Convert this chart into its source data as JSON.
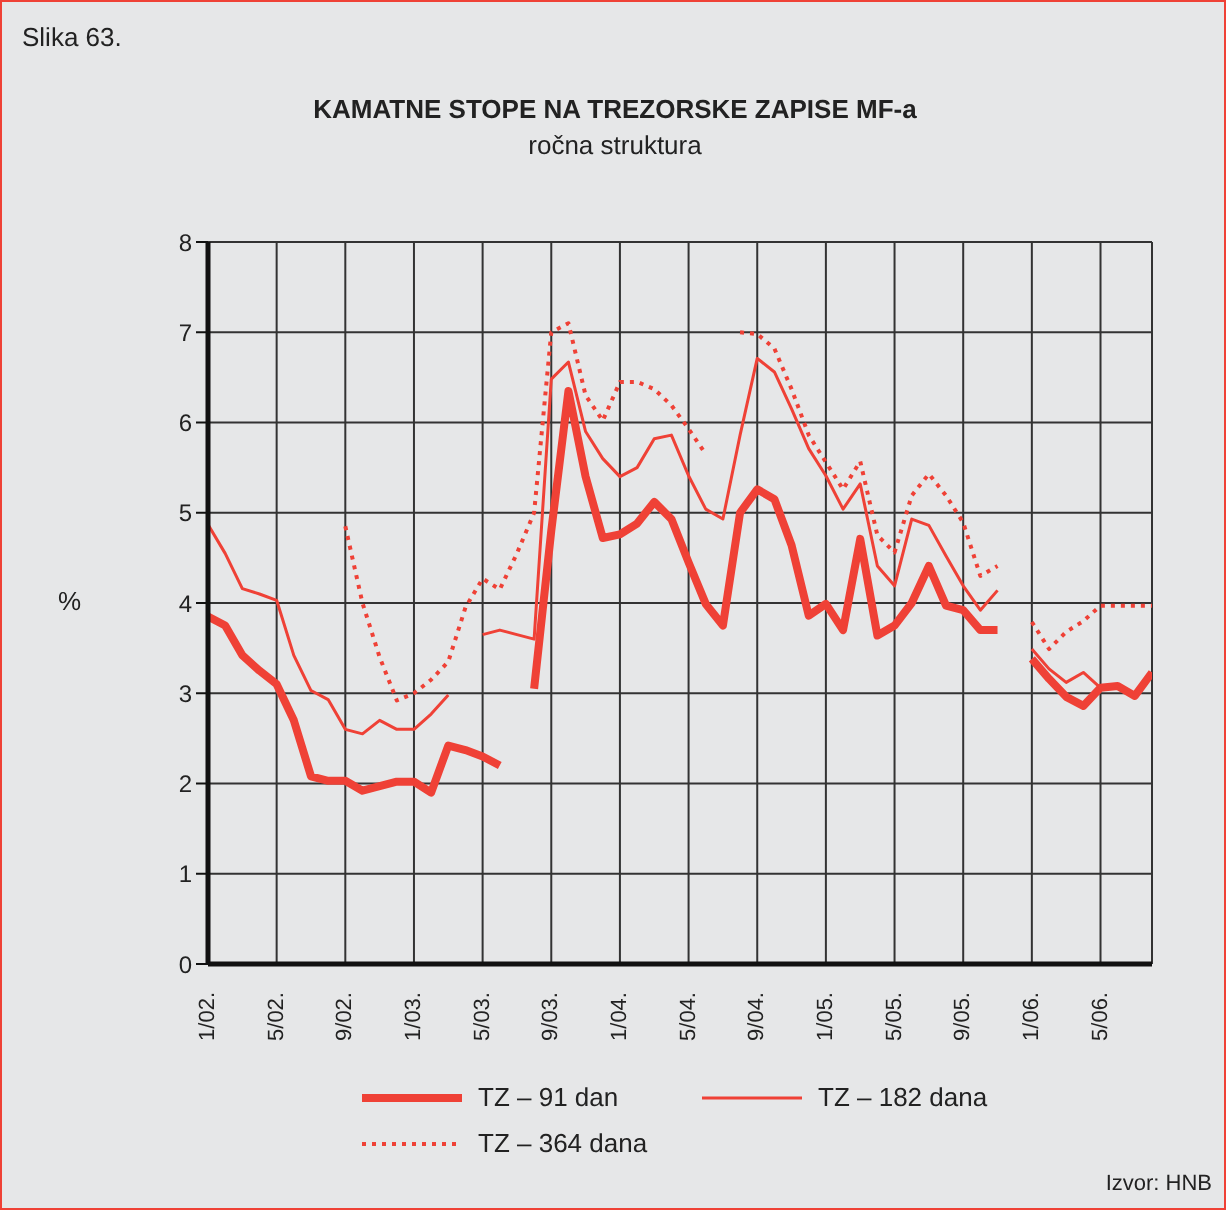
{
  "chart_data": {
    "type": "line",
    "title": "KAMATNE STOPE NA TREZORSKE ZAPISE MF-a",
    "subtitle": "ročna struktura",
    "ylabel": "%",
    "annotations": [
      "Slika 63.",
      "Izvor: HNB"
    ],
    "categories": [
      "1/02.",
      null,
      null,
      null,
      "5/02.",
      null,
      null,
      null,
      "9/02.",
      null,
      null,
      null,
      "1/03.",
      null,
      null,
      null,
      "5/03.",
      null,
      null,
      null,
      "9/03.",
      null,
      null,
      null,
      "1/04.",
      null,
      null,
      null,
      "5/04.",
      null,
      null,
      null,
      "9/04.",
      null,
      null,
      null,
      "1/05.",
      null,
      null,
      null,
      "5/05.",
      null,
      null,
      null,
      "9/05.",
      null,
      null,
      null,
      "1/06.",
      null,
      null,
      null,
      "5/06.",
      null,
      null,
      null
    ],
    "series": [
      {
        "name": "TZ – 91 dan",
        "color": "#ef4136",
        "line_style": "solid",
        "values": [
          3.85,
          3.75,
          3.42,
          3.25,
          3.1,
          2.7,
          2.08,
          2.03,
          2.03,
          1.92,
          1.97,
          2.02,
          2.02,
          1.9,
          2.42,
          2.37,
          2.3,
          2.2,
          null,
          3.05,
          4.8,
          6.35,
          5.4,
          4.72,
          4.76,
          4.88,
          5.12,
          4.93,
          4.45,
          3.99,
          3.75,
          5.0,
          5.26,
          5.15,
          4.64,
          3.86,
          3.99,
          3.7,
          4.71,
          3.64,
          3.75,
          4.0,
          4.41,
          3.97,
          3.92,
          3.7,
          3.7,
          null,
          3.38,
          3.16,
          2.96,
          2.86,
          3.06,
          3.08,
          2.97,
          3.23
        ]
      },
      {
        "name": "TZ – 182 dana",
        "color": "#ef4136",
        "line_style": "solid",
        "values": [
          4.87,
          4.55,
          4.16,
          4.1,
          4.03,
          3.42,
          3.03,
          2.93,
          2.6,
          2.55,
          2.7,
          2.6,
          2.6,
          2.77,
          2.98,
          null,
          3.65,
          3.7,
          3.65,
          3.6,
          6.48,
          6.67,
          5.9,
          5.6,
          5.4,
          5.5,
          5.82,
          5.86,
          5.41,
          5.04,
          4.93,
          5.86,
          6.71,
          6.56,
          6.15,
          5.71,
          5.41,
          5.04,
          5.32,
          4.41,
          4.19,
          4.93,
          4.86,
          4.52,
          4.19,
          3.92,
          4.14,
          null,
          3.49,
          3.27,
          3.12,
          3.23,
          3.06,
          3.08,
          2.97,
          3.23
        ]
      },
      {
        "name": "TZ – 364 dana",
        "color": "#ef4136",
        "line_style": "dotted",
        "values": [
          null,
          null,
          null,
          null,
          null,
          null,
          null,
          null,
          4.85,
          4.0,
          3.4,
          2.92,
          3.0,
          3.15,
          3.35,
          3.95,
          4.27,
          4.15,
          4.55,
          5.0,
          7.0,
          7.1,
          6.3,
          6.02,
          6.45,
          6.45,
          6.37,
          6.19,
          5.93,
          5.65,
          null,
          7.0,
          6.98,
          6.82,
          6.37,
          5.86,
          5.56,
          5.26,
          5.57,
          4.75,
          4.56,
          5.19,
          5.43,
          5.19,
          4.89,
          4.3,
          4.41,
          null,
          3.79,
          3.49,
          3.68,
          3.8,
          3.97,
          3.97,
          3.97,
          3.97
        ]
      }
    ],
    "ylim": [
      0,
      8
    ],
    "yticks": [
      0,
      1,
      2,
      3,
      4,
      5,
      6,
      7,
      8
    ],
    "grid": true,
    "legend": "bottom",
    "marker": "none"
  }
}
